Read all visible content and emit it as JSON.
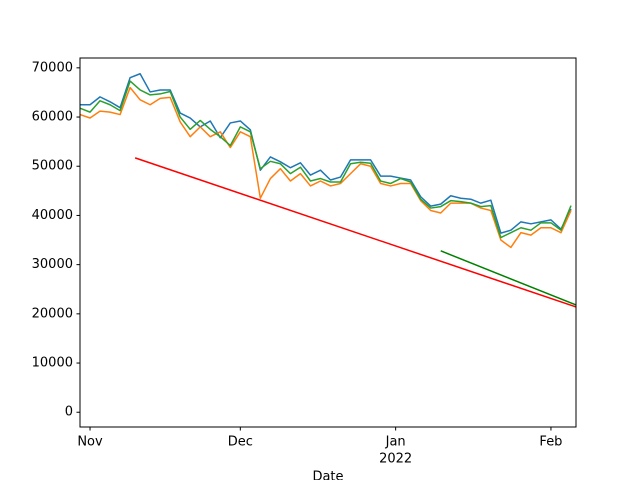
{
  "chart_data": {
    "type": "line",
    "x_label": "Date",
    "xlim": [
      "2021-10-30",
      "2022-02-06"
    ],
    "xticks": [
      {
        "value": "2021-11-01",
        "label": "Nov"
      },
      {
        "value": "2021-12-01",
        "label": "Dec"
      },
      {
        "value": "2022-01-01",
        "label": "Jan",
        "sublabel": "2022"
      },
      {
        "value": "2022-02-01",
        "label": "Feb"
      }
    ],
    "ylim": [
      -3000,
      72000
    ],
    "yticks": [
      0,
      10000,
      20000,
      30000,
      40000,
      50000,
      60000,
      70000
    ],
    "series": [
      {
        "color": "#1f77b4",
        "x": [
          "2021-10-30",
          "2021-11-01",
          "2021-11-03",
          "2021-11-05",
          "2021-11-07",
          "2021-11-09",
          "2021-11-11",
          "2021-11-13",
          "2021-11-15",
          "2021-11-17",
          "2021-11-19",
          "2021-11-21",
          "2021-11-23",
          "2021-11-25",
          "2021-11-27",
          "2021-11-29",
          "2021-12-01",
          "2021-12-03",
          "2021-12-05",
          "2021-12-07",
          "2021-12-09",
          "2021-12-11",
          "2021-12-13",
          "2021-12-15",
          "2021-12-17",
          "2021-12-19",
          "2021-12-21",
          "2021-12-23",
          "2021-12-25",
          "2021-12-27",
          "2021-12-29",
          "2021-12-31",
          "2022-01-02",
          "2022-01-04",
          "2022-01-06",
          "2022-01-08",
          "2022-01-10",
          "2022-01-12",
          "2022-01-14",
          "2022-01-16",
          "2022-01-18",
          "2022-01-20",
          "2022-01-22",
          "2022-01-24",
          "2022-01-26",
          "2022-01-28",
          "2022-01-30",
          "2022-02-01",
          "2022-02-03",
          "2022-02-05"
        ],
        "values": [
          62500,
          62500,
          64100,
          63100,
          61900,
          68000,
          68800,
          65100,
          65500,
          65500,
          60800,
          59800,
          58000,
          59200,
          55800,
          58800,
          59200,
          57400,
          49200,
          51900,
          50900,
          49700,
          50700,
          48200,
          49200,
          47200,
          47800,
          51300,
          51300,
          51300,
          48000,
          48000,
          47600,
          47200,
          43800,
          41900,
          42300,
          44000,
          43500,
          43300,
          42500,
          43100,
          36400,
          37000,
          38700,
          38300,
          38700,
          39100,
          37200,
          41300
        ]
      },
      {
        "color": "#ff7f0e",
        "x": [
          "2021-10-30",
          "2021-11-01",
          "2021-11-03",
          "2021-11-05",
          "2021-11-07",
          "2021-11-09",
          "2021-11-11",
          "2021-11-13",
          "2021-11-15",
          "2021-11-17",
          "2021-11-19",
          "2021-11-21",
          "2021-11-23",
          "2021-11-25",
          "2021-11-27",
          "2021-11-29",
          "2021-12-01",
          "2021-12-03",
          "2021-12-05",
          "2021-12-07",
          "2021-12-09",
          "2021-12-11",
          "2021-12-13",
          "2021-12-15",
          "2021-12-17",
          "2021-12-19",
          "2021-12-21",
          "2021-12-23",
          "2021-12-25",
          "2021-12-27",
          "2021-12-29",
          "2021-12-31",
          "2022-01-02",
          "2022-01-04",
          "2022-01-06",
          "2022-01-08",
          "2022-01-10",
          "2022-01-12",
          "2022-01-14",
          "2022-01-16",
          "2022-01-18",
          "2022-01-20",
          "2022-01-22",
          "2022-01-24",
          "2022-01-26",
          "2022-01-28",
          "2022-01-30",
          "2022-02-01",
          "2022-02-03",
          "2022-02-05"
        ],
        "values": [
          60500,
          59800,
          61200,
          61000,
          60500,
          66000,
          63500,
          62500,
          63800,
          64000,
          59000,
          56000,
          58000,
          56000,
          57000,
          53800,
          57000,
          56000,
          43500,
          47500,
          49500,
          47000,
          48500,
          46000,
          47000,
          46000,
          46500,
          48500,
          50500,
          50000,
          46500,
          46000,
          46500,
          46500,
          43000,
          41000,
          40500,
          42500,
          42500,
          42500,
          41500,
          41000,
          35000,
          33500,
          36500,
          36000,
          37500,
          37500,
          36500,
          41000
        ]
      },
      {
        "color": "#2ca02c",
        "x": [
          "2021-10-30",
          "2021-11-01",
          "2021-11-03",
          "2021-11-05",
          "2021-11-07",
          "2021-11-09",
          "2021-11-11",
          "2021-11-13",
          "2021-11-15",
          "2021-11-17",
          "2021-11-19",
          "2021-11-21",
          "2021-11-23",
          "2021-11-25",
          "2021-11-27",
          "2021-11-29",
          "2021-12-01",
          "2021-12-03",
          "2021-12-05",
          "2021-12-07",
          "2021-12-09",
          "2021-12-11",
          "2021-12-13",
          "2021-12-15",
          "2021-12-17",
          "2021-12-19",
          "2021-12-21",
          "2021-12-23",
          "2021-12-25",
          "2021-12-27",
          "2021-12-29",
          "2021-12-31",
          "2022-01-02",
          "2022-01-04",
          "2022-01-06",
          "2022-01-08",
          "2022-01-10",
          "2022-01-12",
          "2022-01-14",
          "2022-01-16",
          "2022-01-18",
          "2022-01-20",
          "2022-01-22",
          "2022-01-24",
          "2022-01-26",
          "2022-01-28",
          "2022-01-30",
          "2022-02-01",
          "2022-02-03",
          "2022-02-05"
        ],
        "values": [
          61800,
          61000,
          63300,
          62500,
          61300,
          67300,
          65500,
          64500,
          64700,
          65200,
          60000,
          57500,
          59300,
          57500,
          56000,
          54200,
          58000,
          57000,
          49500,
          51000,
          50500,
          48500,
          49800,
          47000,
          47500,
          46800,
          46800,
          50500,
          50800,
          50600,
          47000,
          46500,
          47500,
          46800,
          43300,
          41500,
          41800,
          43000,
          42800,
          42500,
          41800,
          42000,
          35500,
          36500,
          37500,
          37000,
          38500,
          38500,
          37000,
          42000
        ]
      },
      {
        "color": "#ff0000",
        "x": [
          "2021-11-10",
          "2022-02-06"
        ],
        "values": [
          51700,
          21400
        ]
      },
      {
        "color": "#008000",
        "x": [
          "2022-01-10",
          "2022-02-06"
        ],
        "values": [
          32800,
          21800
        ]
      }
    ]
  }
}
